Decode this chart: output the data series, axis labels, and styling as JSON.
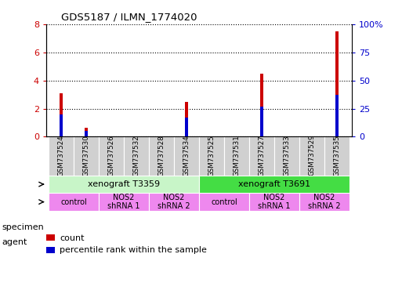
{
  "title": "GDS5187 / ILMN_1774020",
  "samples": [
    "GSM737524",
    "GSM737530",
    "GSM737526",
    "GSM737532",
    "GSM737528",
    "GSM737534",
    "GSM737525",
    "GSM737531",
    "GSM737527",
    "GSM737533",
    "GSM737529",
    "GSM737535"
  ],
  "count_values": [
    3.1,
    0.65,
    0.0,
    0.0,
    0.0,
    2.5,
    0.0,
    0.0,
    4.5,
    0.0,
    0.0,
    7.5
  ],
  "percentile_values": [
    20,
    5,
    0,
    0,
    0,
    17,
    0,
    0,
    27,
    0,
    0,
    37
  ],
  "ylim_left": [
    0,
    8
  ],
  "ylim_right": [
    0,
    100
  ],
  "yticks_left": [
    0,
    2,
    4,
    6,
    8
  ],
  "ytick_labels_left": [
    "0",
    "2",
    "4",
    "6",
    "8"
  ],
  "yticks_right": [
    0,
    25,
    50,
    75,
    100
  ],
  "ytick_labels_right": [
    "0",
    "25",
    "50",
    "75",
    "100%"
  ],
  "bar_color_count": "#cc0000",
  "bar_color_percentile": "#0000cc",
  "bar_width": 0.12,
  "specimen_labels": [
    "xenograft T3359",
    "xenograft T3691"
  ],
  "specimen_spans": [
    [
      0,
      5
    ],
    [
      6,
      11
    ]
  ],
  "specimen_color1": "#c8f5c8",
  "specimen_color2": "#44dd44",
  "agent_groups": [
    {
      "label": "control",
      "span": [
        0,
        1
      ]
    },
    {
      "label": "NOS2\nshRNA 1",
      "span": [
        2,
        3
      ]
    },
    {
      "label": "NOS2\nshRNA 2",
      "span": [
        4,
        5
      ]
    },
    {
      "label": "control",
      "span": [
        6,
        7
      ]
    },
    {
      "label": "NOS2\nshRNA 1",
      "span": [
        8,
        9
      ]
    },
    {
      "label": "NOS2\nshRNA 2",
      "span": [
        10,
        11
      ]
    }
  ],
  "agent_color": "#ee88ee",
  "grid_color": "black",
  "background_color": "white",
  "left_axis_color": "#cc0000",
  "right_axis_color": "#0000cc",
  "label_bg_color": "#d0d0d0"
}
